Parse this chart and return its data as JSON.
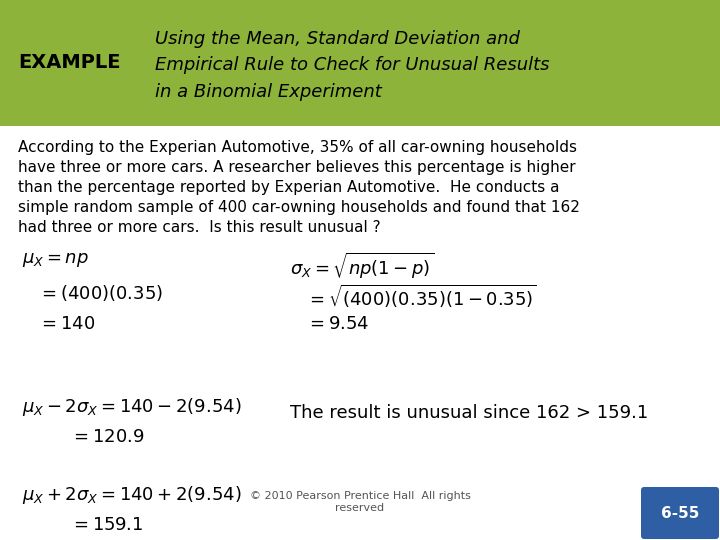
{
  "header_bg_color": "#8db33a",
  "header_example_text": "EXAMPLE",
  "header_title_text": "Using the Mean, Standard Deviation and\nEmpirical Rule to Check for Unusual Results\nin a Binomial Experiment",
  "body_bg_color": "#ffffff",
  "paragraph_lines": [
    "According to the Experian Automotive, 35% of all car-owning households",
    "have three or more cars. A researcher believes this percentage is higher",
    "than the percentage reported by Experian Automotive.  He conducts a",
    "simple random sample of 400 car-owning households and found that 162",
    "had three or more cars.  Is this result unusual ?"
  ],
  "formula_left_1": "$\\mu_X = np$",
  "formula_left_2": "$= (400)(0.35)$",
  "formula_left_3": "$=140$",
  "formula_right_1": "$\\sigma_X = \\sqrt{np(1-p)}$",
  "formula_right_2": "$= \\sqrt{(400)(0.35)(1-0.35)}$",
  "formula_right_3": "$= 9.54$",
  "formula_lower_left_1": "$\\mu_X - 2\\sigma_X = 140 - 2(9.54)$",
  "formula_lower_left_2": "$= 120.9$",
  "formula_lower_right": "The result is unusual since 162 > 159.1",
  "formula_lower_left2_1": "$\\mu_X + 2\\sigma_X = 140 + 2(9.54)$",
  "formula_lower_left2_2": "$= 159.1$",
  "footer_text": "© 2010 Pearson Prentice Hall  All rights\nreserved",
  "slide_number": "6-55",
  "footer_bg_color": "#2e5ea3",
  "text_color": "#000000",
  "header_text_color": "#000000"
}
